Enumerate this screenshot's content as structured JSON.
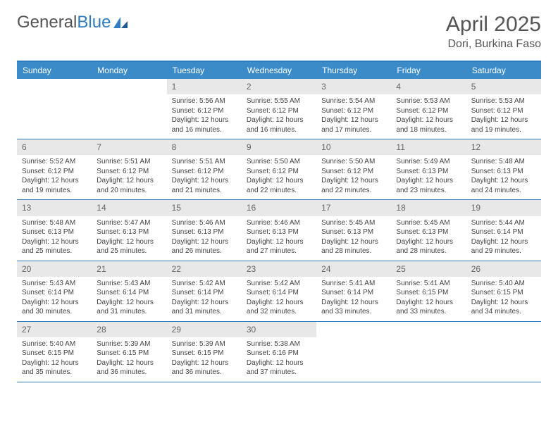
{
  "logo": {
    "text_gray": "General",
    "text_blue": "Blue"
  },
  "title": {
    "month": "April 2025",
    "location": "Dori, Burkina Faso"
  },
  "colors": {
    "header_bg": "#3b8bc9",
    "header_text": "#ffffff",
    "border": "#2f7bbf",
    "daynum_bg": "#e8e8e8",
    "daynum_text": "#666666",
    "body_text": "#444444",
    "logo_gray": "#555555",
    "logo_blue": "#2f7bbf",
    "page_bg": "#ffffff"
  },
  "fonts": {
    "month_size": 30,
    "location_size": 16,
    "dayheader_size": 12,
    "daynum_size": 12,
    "detail_size": 10
  },
  "day_names": [
    "Sunday",
    "Monday",
    "Tuesday",
    "Wednesday",
    "Thursday",
    "Friday",
    "Saturday"
  ],
  "weeks": [
    [
      null,
      null,
      {
        "n": "1",
        "sr": "Sunrise: 5:56 AM",
        "ss": "Sunset: 6:12 PM",
        "dl": "Daylight: 12 hours and 16 minutes."
      },
      {
        "n": "2",
        "sr": "Sunrise: 5:55 AM",
        "ss": "Sunset: 6:12 PM",
        "dl": "Daylight: 12 hours and 16 minutes."
      },
      {
        "n": "3",
        "sr": "Sunrise: 5:54 AM",
        "ss": "Sunset: 6:12 PM",
        "dl": "Daylight: 12 hours and 17 minutes."
      },
      {
        "n": "4",
        "sr": "Sunrise: 5:53 AM",
        "ss": "Sunset: 6:12 PM",
        "dl": "Daylight: 12 hours and 18 minutes."
      },
      {
        "n": "5",
        "sr": "Sunrise: 5:53 AM",
        "ss": "Sunset: 6:12 PM",
        "dl": "Daylight: 12 hours and 19 minutes."
      }
    ],
    [
      {
        "n": "6",
        "sr": "Sunrise: 5:52 AM",
        "ss": "Sunset: 6:12 PM",
        "dl": "Daylight: 12 hours and 19 minutes."
      },
      {
        "n": "7",
        "sr": "Sunrise: 5:51 AM",
        "ss": "Sunset: 6:12 PM",
        "dl": "Daylight: 12 hours and 20 minutes."
      },
      {
        "n": "8",
        "sr": "Sunrise: 5:51 AM",
        "ss": "Sunset: 6:12 PM",
        "dl": "Daylight: 12 hours and 21 minutes."
      },
      {
        "n": "9",
        "sr": "Sunrise: 5:50 AM",
        "ss": "Sunset: 6:12 PM",
        "dl": "Daylight: 12 hours and 22 minutes."
      },
      {
        "n": "10",
        "sr": "Sunrise: 5:50 AM",
        "ss": "Sunset: 6:12 PM",
        "dl": "Daylight: 12 hours and 22 minutes."
      },
      {
        "n": "11",
        "sr": "Sunrise: 5:49 AM",
        "ss": "Sunset: 6:13 PM",
        "dl": "Daylight: 12 hours and 23 minutes."
      },
      {
        "n": "12",
        "sr": "Sunrise: 5:48 AM",
        "ss": "Sunset: 6:13 PM",
        "dl": "Daylight: 12 hours and 24 minutes."
      }
    ],
    [
      {
        "n": "13",
        "sr": "Sunrise: 5:48 AM",
        "ss": "Sunset: 6:13 PM",
        "dl": "Daylight: 12 hours and 25 minutes."
      },
      {
        "n": "14",
        "sr": "Sunrise: 5:47 AM",
        "ss": "Sunset: 6:13 PM",
        "dl": "Daylight: 12 hours and 25 minutes."
      },
      {
        "n": "15",
        "sr": "Sunrise: 5:46 AM",
        "ss": "Sunset: 6:13 PM",
        "dl": "Daylight: 12 hours and 26 minutes."
      },
      {
        "n": "16",
        "sr": "Sunrise: 5:46 AM",
        "ss": "Sunset: 6:13 PM",
        "dl": "Daylight: 12 hours and 27 minutes."
      },
      {
        "n": "17",
        "sr": "Sunrise: 5:45 AM",
        "ss": "Sunset: 6:13 PM",
        "dl": "Daylight: 12 hours and 28 minutes."
      },
      {
        "n": "18",
        "sr": "Sunrise: 5:45 AM",
        "ss": "Sunset: 6:13 PM",
        "dl": "Daylight: 12 hours and 28 minutes."
      },
      {
        "n": "19",
        "sr": "Sunrise: 5:44 AM",
        "ss": "Sunset: 6:14 PM",
        "dl": "Daylight: 12 hours and 29 minutes."
      }
    ],
    [
      {
        "n": "20",
        "sr": "Sunrise: 5:43 AM",
        "ss": "Sunset: 6:14 PM",
        "dl": "Daylight: 12 hours and 30 minutes."
      },
      {
        "n": "21",
        "sr": "Sunrise: 5:43 AM",
        "ss": "Sunset: 6:14 PM",
        "dl": "Daylight: 12 hours and 31 minutes."
      },
      {
        "n": "22",
        "sr": "Sunrise: 5:42 AM",
        "ss": "Sunset: 6:14 PM",
        "dl": "Daylight: 12 hours and 31 minutes."
      },
      {
        "n": "23",
        "sr": "Sunrise: 5:42 AM",
        "ss": "Sunset: 6:14 PM",
        "dl": "Daylight: 12 hours and 32 minutes."
      },
      {
        "n": "24",
        "sr": "Sunrise: 5:41 AM",
        "ss": "Sunset: 6:14 PM",
        "dl": "Daylight: 12 hours and 33 minutes."
      },
      {
        "n": "25",
        "sr": "Sunrise: 5:41 AM",
        "ss": "Sunset: 6:15 PM",
        "dl": "Daylight: 12 hours and 33 minutes."
      },
      {
        "n": "26",
        "sr": "Sunrise: 5:40 AM",
        "ss": "Sunset: 6:15 PM",
        "dl": "Daylight: 12 hours and 34 minutes."
      }
    ],
    [
      {
        "n": "27",
        "sr": "Sunrise: 5:40 AM",
        "ss": "Sunset: 6:15 PM",
        "dl": "Daylight: 12 hours and 35 minutes."
      },
      {
        "n": "28",
        "sr": "Sunrise: 5:39 AM",
        "ss": "Sunset: 6:15 PM",
        "dl": "Daylight: 12 hours and 36 minutes."
      },
      {
        "n": "29",
        "sr": "Sunrise: 5:39 AM",
        "ss": "Sunset: 6:15 PM",
        "dl": "Daylight: 12 hours and 36 minutes."
      },
      {
        "n": "30",
        "sr": "Sunrise: 5:38 AM",
        "ss": "Sunset: 6:16 PM",
        "dl": "Daylight: 12 hours and 37 minutes."
      },
      null,
      null,
      null
    ]
  ]
}
